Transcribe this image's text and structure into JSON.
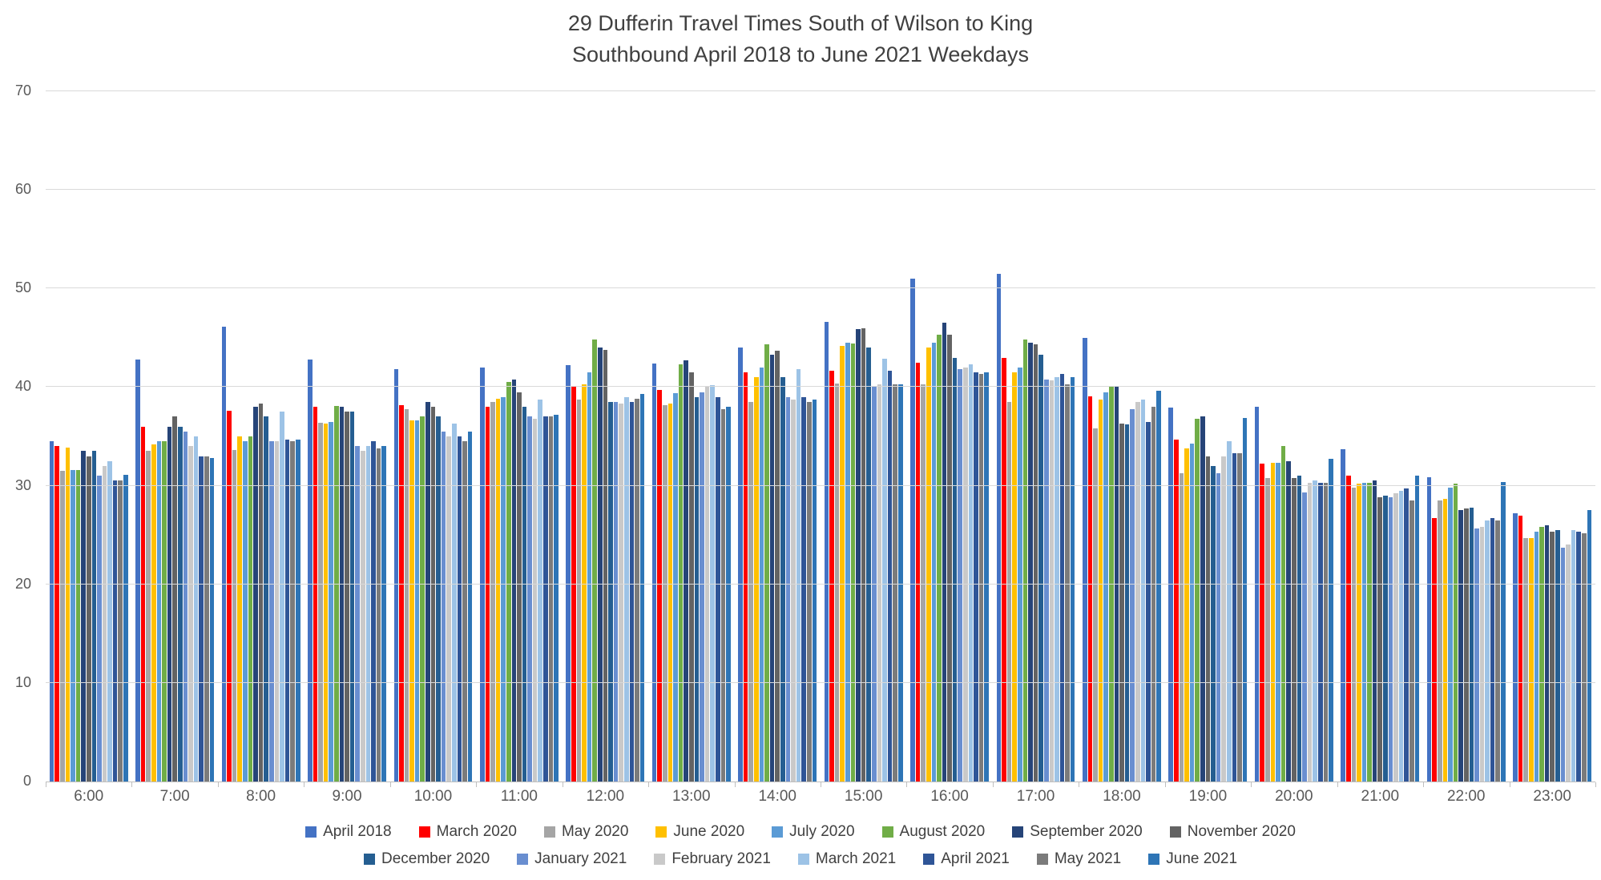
{
  "chart_data": {
    "type": "bar",
    "title_lines": [
      "29 Dufferin Travel Times South of Wilson to King",
      "Southbound April 2018 to June 2021 Weekdays"
    ],
    "xlabel": "",
    "ylabel": "",
    "ylim": [
      0,
      70
    ],
    "y_ticks": [
      0,
      10,
      20,
      30,
      40,
      50,
      60,
      70
    ],
    "grid": true,
    "legend_position": "bottom-two-rows",
    "legend_row_split": 8,
    "categories": [
      "6:00",
      "7:00",
      "8:00",
      "9:00",
      "10:00",
      "11:00",
      "12:00",
      "13:00",
      "14:00",
      "15:00",
      "16:00",
      "17:00",
      "18:00",
      "19:00",
      "20:00",
      "21:00",
      "22:00",
      "23:00"
    ],
    "series": [
      {
        "name": "April 2018",
        "color": "#4472C4",
        "values": [
          34.5,
          42.8,
          46.1,
          42.8,
          41.8,
          42.0,
          42.2,
          42.4,
          44.0,
          46.6,
          51.0,
          51.5,
          45.0,
          37.9,
          38.0,
          33.7,
          30.9,
          27.2
        ]
      },
      {
        "name": "March 2020",
        "color": "#FF0000",
        "values": [
          34.0,
          36.0,
          37.6,
          38.0,
          38.2,
          38.0,
          40.0,
          39.7,
          41.5,
          41.7,
          42.5,
          43.0,
          39.1,
          34.7,
          32.2,
          31.0,
          26.7,
          27.0
        ]
      },
      {
        "name": "May 2020",
        "color": "#A5A5A5",
        "values": [
          31.5,
          33.5,
          33.6,
          36.4,
          37.8,
          38.5,
          38.7,
          38.2,
          38.5,
          40.4,
          40.3,
          38.5,
          35.8,
          31.3,
          30.8,
          29.8,
          28.5,
          24.7
        ]
      },
      {
        "name": "June 2020",
        "color": "#FFC000",
        "values": [
          33.9,
          34.2,
          35.0,
          36.3,
          36.6,
          38.8,
          40.3,
          38.3,
          41.0,
          44.2,
          44.0,
          41.5,
          38.7,
          33.8,
          32.3,
          30.2,
          28.7,
          24.7
        ]
      },
      {
        "name": "July 2020",
        "color": "#5B9BD5",
        "values": [
          31.6,
          34.5,
          34.5,
          36.5,
          36.6,
          39.0,
          41.5,
          39.4,
          42.0,
          44.5,
          44.5,
          42.0,
          39.5,
          34.3,
          32.3,
          30.3,
          29.8,
          25.3
        ]
      },
      {
        "name": "August 2020",
        "color": "#70AD47",
        "values": [
          31.6,
          34.5,
          35.0,
          38.1,
          37.0,
          40.5,
          44.8,
          42.3,
          44.3,
          44.4,
          45.3,
          44.8,
          40.0,
          36.8,
          34.0,
          30.3,
          30.2,
          25.8
        ]
      },
      {
        "name": "September 2020",
        "color": "#264478",
        "values": [
          33.5,
          36.0,
          38.0,
          38.0,
          38.5,
          40.8,
          44.0,
          42.7,
          43.3,
          45.9,
          46.5,
          44.5,
          40.0,
          37.0,
          32.5,
          30.5,
          27.5,
          26.0
        ]
      },
      {
        "name": "November 2020",
        "color": "#636363",
        "values": [
          33.0,
          37.0,
          38.3,
          37.5,
          38.0,
          39.5,
          43.8,
          41.5,
          43.7,
          46.0,
          45.3,
          44.3,
          36.3,
          33.0,
          30.8,
          28.8,
          27.7,
          25.3
        ]
      },
      {
        "name": "December 2020",
        "color": "#255E91",
        "values": [
          33.5,
          36.0,
          37.0,
          37.5,
          37.0,
          38.0,
          38.5,
          39.0,
          41.0,
          44.0,
          43.0,
          43.3,
          36.2,
          32.0,
          31.0,
          29.0,
          27.8,
          25.5
        ]
      },
      {
        "name": "January 2021",
        "color": "#698ED0",
        "values": [
          31.0,
          35.5,
          34.5,
          34.0,
          35.5,
          37.0,
          38.5,
          39.5,
          39.0,
          40.0,
          41.8,
          40.8,
          37.8,
          31.3,
          29.3,
          28.8,
          25.7,
          23.7
        ]
      },
      {
        "name": "February 2021",
        "color": "#C9C9C9",
        "values": [
          32.0,
          34.0,
          34.5,
          33.5,
          35.0,
          36.8,
          38.3,
          40.0,
          38.7,
          40.3,
          42.0,
          40.7,
          38.5,
          33.0,
          30.3,
          29.2,
          25.8,
          24.0
        ]
      },
      {
        "name": "March 2021",
        "color": "#9DC3E6",
        "values": [
          32.5,
          35.0,
          37.5,
          34.0,
          36.3,
          38.7,
          39.0,
          40.2,
          41.8,
          42.9,
          42.3,
          41.0,
          38.7,
          34.5,
          30.5,
          29.5,
          26.5,
          25.5
        ]
      },
      {
        "name": "April 2021",
        "color": "#2F5597",
        "values": [
          30.5,
          33.0,
          34.7,
          34.5,
          35.0,
          37.0,
          38.5,
          39.0,
          39.0,
          41.7,
          41.5,
          41.3,
          36.5,
          33.3,
          30.3,
          29.7,
          26.7,
          25.3
        ]
      },
      {
        "name": "May 2021",
        "color": "#7B7B7B",
        "values": [
          30.5,
          33.0,
          34.5,
          33.8,
          34.5,
          37.0,
          38.8,
          37.8,
          38.5,
          40.3,
          41.3,
          40.3,
          38.0,
          33.3,
          30.3,
          28.5,
          26.5,
          25.2
        ]
      },
      {
        "name": "June 2021",
        "color": "#2E75B6",
        "values": [
          31.1,
          32.8,
          34.7,
          34.0,
          35.5,
          37.2,
          39.3,
          38.0,
          38.7,
          40.3,
          41.5,
          41.0,
          39.6,
          36.9,
          32.7,
          31.0,
          30.4,
          27.5
        ]
      }
    ]
  }
}
